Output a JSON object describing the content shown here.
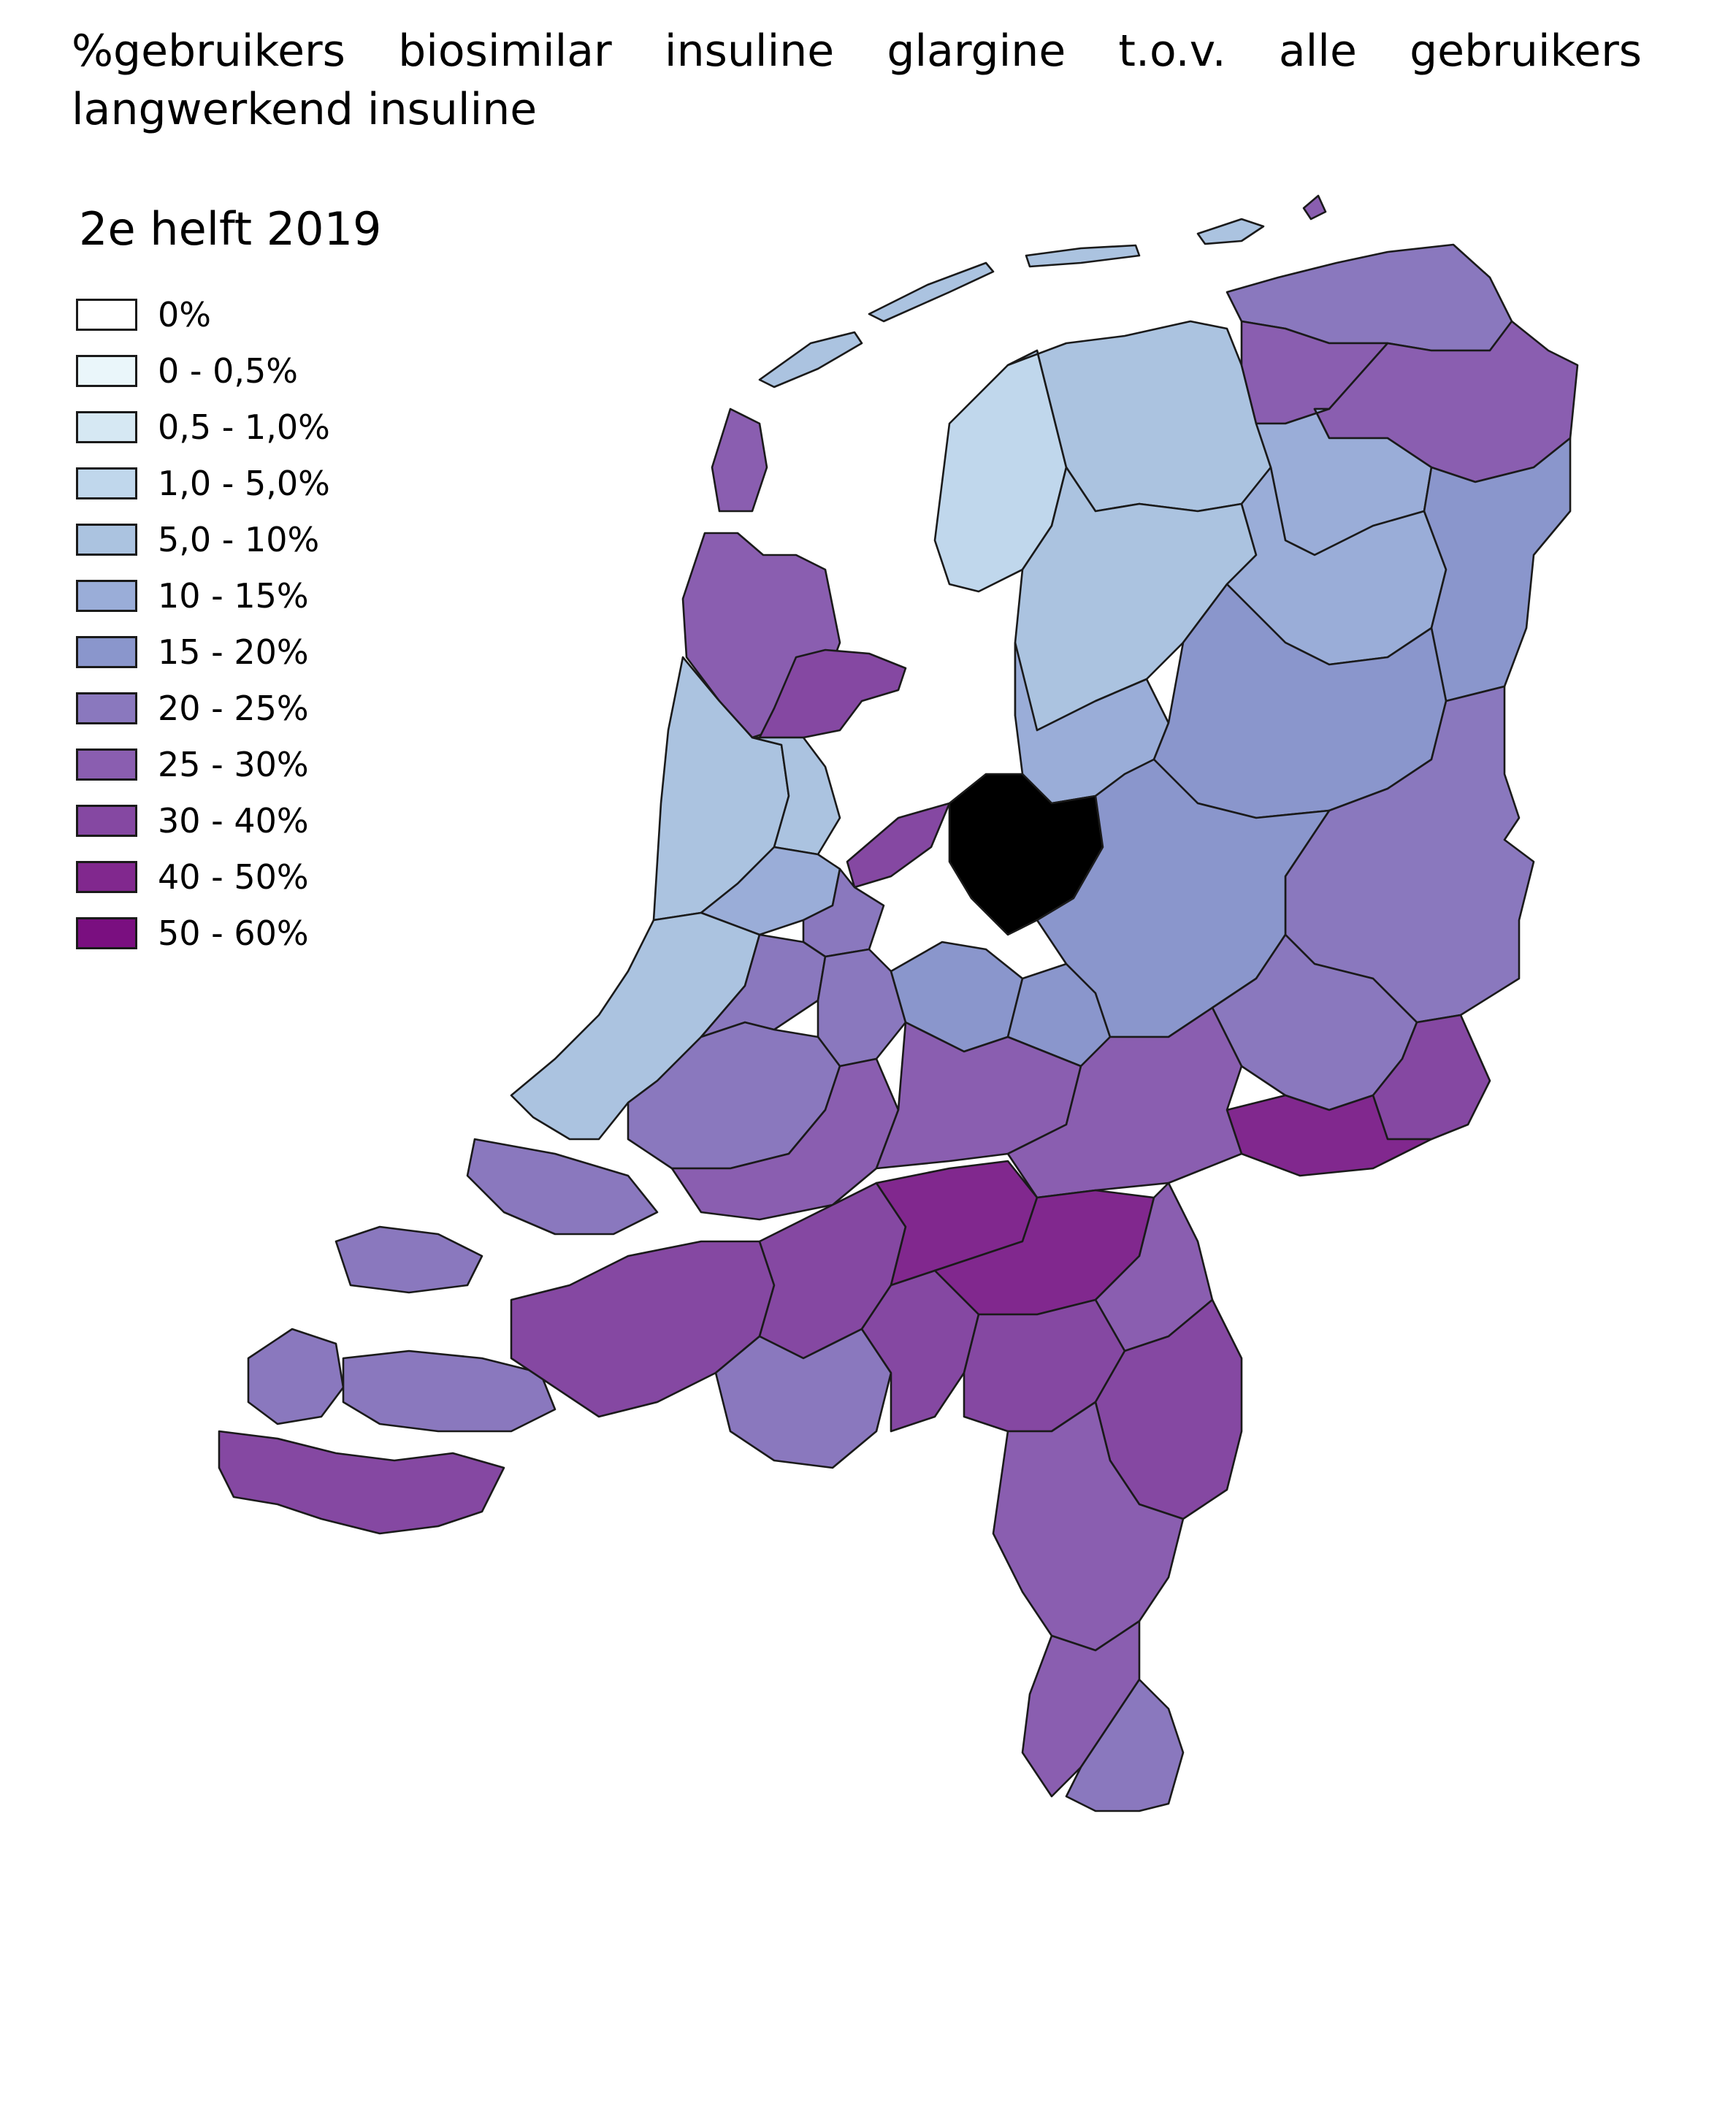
{
  "title": "%gebruikers biosimilar insuline glargine t.o.v. alle gebruikers langwerkend insuline",
  "legend": {
    "title": "2e helft 2019",
    "classes": [
      {
        "label": "0%",
        "color": "#ffffff"
      },
      {
        "label": "0 - 0,5%",
        "color": "#eaf6fa"
      },
      {
        "label": "0,5 - 1,0%",
        "color": "#d6e8f3"
      },
      {
        "label": "1,0 - 5,0%",
        "color": "#c0d7ec"
      },
      {
        "label": "5,0 - 10%",
        "color": "#abc3e0"
      },
      {
        "label": "10 - 15%",
        "color": "#9aadd8"
      },
      {
        "label": "15 - 20%",
        "color": "#8a96cc"
      },
      {
        "label": "20 - 25%",
        "color": "#8a78be"
      },
      {
        "label": "25 - 30%",
        "color": "#8a5eb0"
      },
      {
        "label": "30 - 40%",
        "color": "#8548a2"
      },
      {
        "label": "40 - 50%",
        "color": "#81288e"
      },
      {
        "label": "50 - 60%",
        "color": "#7a0f80"
      }
    ]
  },
  "map": {
    "water_color": "#ffffff",
    "regions": [
      {
        "name": "texel",
        "cls": 8
      },
      {
        "name": "north-holland-north",
        "cls": 8
      },
      {
        "name": "north-holland-west-coast",
        "cls": 4
      },
      {
        "name": "north-holland-middle",
        "cls": 4
      },
      {
        "name": "amsterdam-region",
        "cls": 5
      },
      {
        "name": "west-frisia",
        "cls": 9
      },
      {
        "name": "almere",
        "cls": 9
      },
      {
        "name": "gooi",
        "cls": 7
      },
      {
        "name": "utrecht-west",
        "cls": 6
      },
      {
        "name": "utrecht-east",
        "cls": 6
      },
      {
        "name": "friesland-northwest",
        "cls": 3
      },
      {
        "name": "friesland-northeast",
        "cls": 4
      },
      {
        "name": "friesland-south",
        "cls": 4
      },
      {
        "name": "groningen-north",
        "cls": 7
      },
      {
        "name": "groningen-northeast",
        "cls": 8
      },
      {
        "name": "groningen-east",
        "cls": 8
      },
      {
        "name": "drenthe-north",
        "cls": 5
      },
      {
        "name": "drenthe-south",
        "cls": 5
      },
      {
        "name": "drenthe-east",
        "cls": 6
      },
      {
        "name": "flevoland-east",
        "cls": 5
      },
      {
        "name": "overijssel-north",
        "cls": 6
      },
      {
        "name": "overijssel-twente",
        "cls": 7
      },
      {
        "name": "gelderland-veluwe",
        "cls": 6
      },
      {
        "name": "gelderland-east",
        "cls": 7
      },
      {
        "name": "achterhoek-south",
        "cls": 9
      },
      {
        "name": "doetinchem",
        "cls": 10
      },
      {
        "name": "zuid-holland-coast",
        "cls": 4
      },
      {
        "name": "leiden-region",
        "cls": 7
      },
      {
        "name": "gouda-region",
        "cls": 7
      },
      {
        "name": "rotterdam-region",
        "cls": 7
      },
      {
        "name": "dordrecht-region",
        "cls": 8
      },
      {
        "name": "rivierenland",
        "cls": 8
      },
      {
        "name": "nijmegen-region",
        "cls": 8
      },
      {
        "name": "goeree",
        "cls": 7
      },
      {
        "name": "schouwen",
        "cls": 7
      },
      {
        "name": "walcheren",
        "cls": 7
      },
      {
        "name": "zuid-beveland",
        "cls": 7
      },
      {
        "name": "zeeuws-vlaanderen",
        "cls": 9
      },
      {
        "name": "west-brabant",
        "cls": 9
      },
      {
        "name": "midden-brabant",
        "cls": 9
      },
      {
        "name": "den-bosch",
        "cls": 10
      },
      {
        "name": "oss-region",
        "cls": 10
      },
      {
        "name": "noordoost-brabant",
        "cls": 8
      },
      {
        "name": "eindhoven-west",
        "cls": 7
      },
      {
        "name": "eindhoven",
        "cls": 9
      },
      {
        "name": "helmond",
        "cls": 9
      },
      {
        "name": "noord-limburg",
        "cls": 9
      },
      {
        "name": "midden-limburg",
        "cls": 8
      },
      {
        "name": "zuid-limburg-west",
        "cls": 8
      },
      {
        "name": "zuid-limburg-east",
        "cls": 7
      }
    ]
  }
}
